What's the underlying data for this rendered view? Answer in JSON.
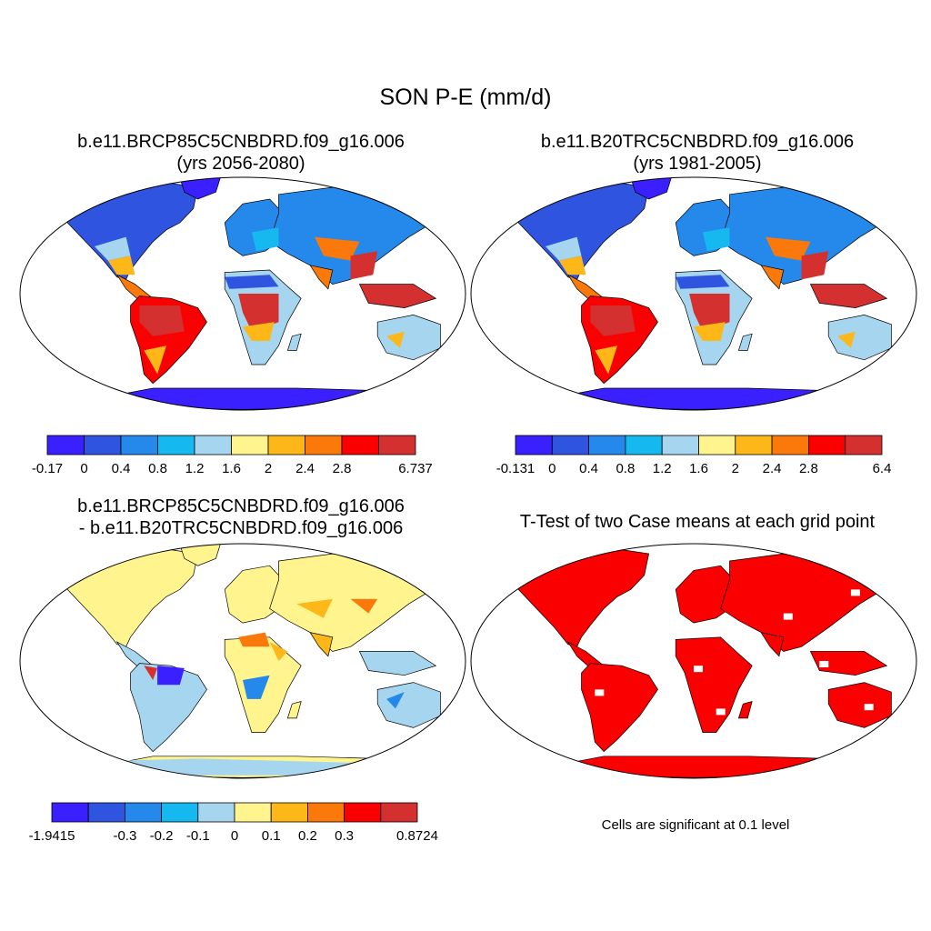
{
  "main_title": "SON P-E (mm/d)",
  "palette": [
    "#3a1fff",
    "#2f55e0",
    "#2489ea",
    "#15b8ef",
    "#a6d6ef",
    "#fff48d",
    "#fdb719",
    "#fb780a",
    "#fb0000",
    "#d43030"
  ],
  "colors": {
    "ocean": "#ffffff",
    "coast": "#000000",
    "significant": "#ff0000",
    "antarctic_shelf": "#a6d6ef"
  },
  "panels": [
    {
      "id": "p1",
      "title_line1": "b.e11.BRCP85C5CNBDRD.f09_g16.006",
      "title_line2": "(yrs 2056-2080)",
      "colorbar": {
        "labels": [
          "-0.17",
          "0",
          "0.4",
          "0.8",
          "1.2",
          "1.6",
          "2",
          "2.4",
          "2.8",
          "6.737"
        ]
      }
    },
    {
      "id": "p2",
      "title_line1": "b.e11.B20TRC5CNBDRD.f09_g16.006",
      "title_line2": "(yrs 1981-2005)",
      "colorbar": {
        "labels": [
          "-0.131",
          "0",
          "0.4",
          "0.8",
          "1.2",
          "1.6",
          "2",
          "2.4",
          "2.8",
          "6.4"
        ]
      }
    },
    {
      "id": "p3",
      "title_line1": "b.e11.BRCP85C5CNBDRD.f09_g16.006",
      "title_line2": "- b.e11.B20TRC5CNBDRD.f09_g16.006",
      "colorbar": {
        "labels": [
          "-1.9415",
          "-0.3",
          "-0.2",
          "-0.1",
          "0",
          "0.1",
          "0.2",
          "0.3",
          "0.8724"
        ]
      }
    },
    {
      "id": "p4",
      "title_line1": "T-Test of two Case means at each grid point",
      "note": "Cells are significant at 0.1 level"
    }
  ]
}
